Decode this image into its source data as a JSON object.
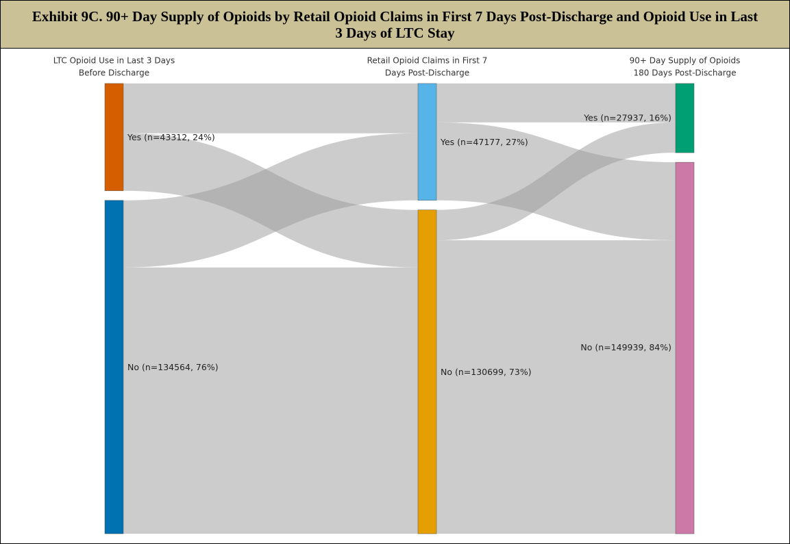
{
  "chart_data": {
    "type": "sankey",
    "title": "Exhibit 9C. 90+ Day Supply of Opioids by Retail Opioid Claims in First 7 Days Post-Discharge and Opioid Use in Last 3 Days of LTC Stay",
    "columns": [
      {
        "header": [
          "LTC Opioid Use in Last 3 Days",
          "Before Discharge"
        ],
        "nodes": [
          {
            "label": "Yes (n=43312, 24%)",
            "value": 43312,
            "color": "#d55e00",
            "flows": [
              20100,
              23212
            ]
          },
          {
            "label": "No (n=134564, 76%)",
            "value": 134564,
            "color": "#0072b2",
            "flows": [
              27077,
              107487
            ]
          }
        ]
      },
      {
        "header": [
          "Retail Opioid Claims in First 7",
          "Days Post-Discharge"
        ],
        "nodes": [
          {
            "label": "Yes (n=47177, 27%)",
            "value": 47177,
            "color": "#56b4e9",
            "flows": [
              15700,
              31477
            ]
          },
          {
            "label": "No (n=130699, 73%)",
            "value": 130699,
            "color": "#e69f00",
            "flows": [
              12237,
              118462
            ]
          }
        ]
      },
      {
        "header": [
          "90+ Day Supply of Opioids",
          "180 Days Post-Discharge"
        ],
        "nodes": [
          {
            "label": "Yes (n=27937, 16%)",
            "value": 27937,
            "color": "#009e73"
          },
          {
            "label": "No (n=149939, 84%)",
            "value": 149939,
            "color": "#cc79a7"
          }
        ]
      }
    ]
  }
}
